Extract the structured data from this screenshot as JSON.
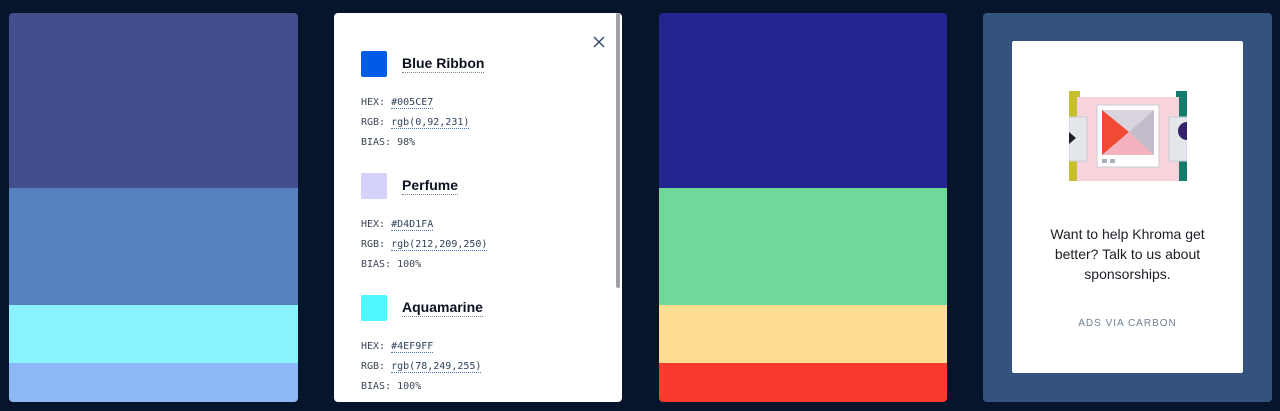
{
  "palettes": [
    {
      "stripes": [
        {
          "color": "#434e8c",
          "fraction": 0.45
        },
        {
          "color": "#5581c1",
          "fraction": 0.3
        },
        {
          "color": "#8af2fd",
          "fraction": 0.15
        },
        {
          "color": "#8cb8f8",
          "fraction": 0.1
        }
      ]
    },
    {
      "stripes": [
        {
          "color": "#232690",
          "fraction": 0.45
        },
        {
          "color": "#70d899",
          "fraction": 0.3
        },
        {
          "color": "#fcdd92",
          "fraction": 0.15
        },
        {
          "color": "#fa3a2f",
          "fraction": 0.1
        }
      ]
    }
  ],
  "detail": {
    "close_icon": "close-icon",
    "colors": [
      {
        "name": "Blue Ribbon",
        "swatch": "#005CE7",
        "hex_label": "HEX:",
        "hex": "#005CE7",
        "rgb_label": "RGB:",
        "rgb": "rgb(0,92,231)",
        "bias_label": "BIAS:",
        "bias": "98%"
      },
      {
        "name": "Perfume",
        "swatch": "#D4D1FA",
        "hex_label": "HEX:",
        "hex": "#D4D1FA",
        "rgb_label": "RGB:",
        "rgb": "rgb(212,209,250)",
        "bias_label": "BIAS:",
        "bias": "100%"
      },
      {
        "name": "Aquamarine",
        "swatch": "#4EF9FF",
        "hex_label": "HEX:",
        "hex": "#4EF9FF",
        "rgb_label": "RGB:",
        "rgb": "rgb(78,249,255)",
        "bias_label": "BIAS:",
        "bias": "100%"
      }
    ]
  },
  "ad": {
    "text": "Want to help Khroma get better? Talk to us about sponsorships.",
    "via": "ADS VIA CARBON"
  }
}
